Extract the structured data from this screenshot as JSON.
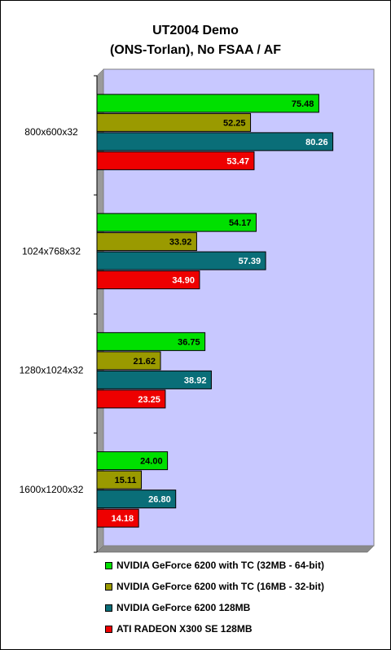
{
  "chart_data": {
    "type": "bar",
    "orientation": "horizontal",
    "title": "UT2004 Demo",
    "subtitle": "(ONS-Torlan), No FSAA / AF",
    "categories": [
      "800x600x32",
      "1024x768x32",
      "1280x1024x32",
      "1600x1200x32"
    ],
    "series": [
      {
        "name": "NVIDIA GeForce 6200 with TC (32MB - 64-bit)",
        "color": "#00e000",
        "values": [
          75.48,
          54.17,
          36.75,
          24.0
        ],
        "labels": [
          "75.48",
          "54.17",
          "36.75",
          "24.00"
        ]
      },
      {
        "name": "NVIDIA GeForce 6200 with TC (16MB - 32-bit)",
        "color": "#9a9a00",
        "values": [
          52.25,
          33.92,
          21.62,
          15.11
        ],
        "labels": [
          "52.25",
          "33.92",
          "21.62",
          "15.11"
        ]
      },
      {
        "name": "NVIDIA GeForce 6200 128MB",
        "color": "#0a6e78",
        "values": [
          80.26,
          57.39,
          38.92,
          26.8
        ],
        "labels": [
          "80.26",
          "57.39",
          "38.92",
          "26.80"
        ]
      },
      {
        "name": "ATI RADEON X300 SE 128MB",
        "color": "#ee0000",
        "values": [
          53.47,
          34.9,
          23.25,
          14.18
        ],
        "labels": [
          "53.47",
          "34.90",
          "23.25",
          "14.18"
        ]
      }
    ],
    "xlim": [
      0,
      92
    ],
    "grid": false,
    "legend_position": "bottom",
    "plot_background": "#c8c8ff"
  }
}
